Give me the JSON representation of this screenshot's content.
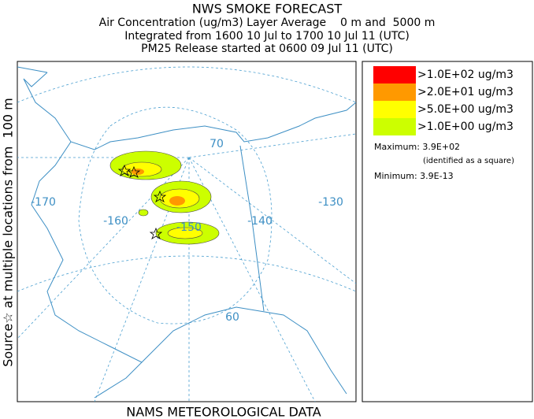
{
  "header": {
    "title": "NWS SMOKE FORECAST",
    "lines": [
      "Air Concentration (ug/m3) Layer Average    0 m and  5000 m",
      "Integrated from 1600 10 Jul to 1700 10 Jul 11 (UTC)",
      "PM25 Release started at 0600 09 Jul 11 (UTC)"
    ]
  },
  "side_label": "Source☆ at multiple locations from  100 m",
  "footer": "NAMS METEOROLOGICAL DATA",
  "legend": {
    "entries": [
      {
        "label": ">1.0E+02 ug/m3",
        "color": "#ff0000"
      },
      {
        "label": ">2.0E+01 ug/m3",
        "color": "#ff9900"
      },
      {
        "label": ">5.0E+00 ug/m3",
        "color": "#ffff00"
      },
      {
        "label": ">1.0E+00 ug/m3",
        "color": "#ccff00"
      }
    ],
    "maximum": "Maximum: 3.9E+02",
    "maximum_note": "(identified as a square)",
    "minimum": "Minimum: 3.9E-13"
  },
  "map": {
    "graticule_labels": [
      "70",
      "-170",
      "-160",
      "-150",
      "-140",
      "-130",
      "60"
    ]
  }
}
